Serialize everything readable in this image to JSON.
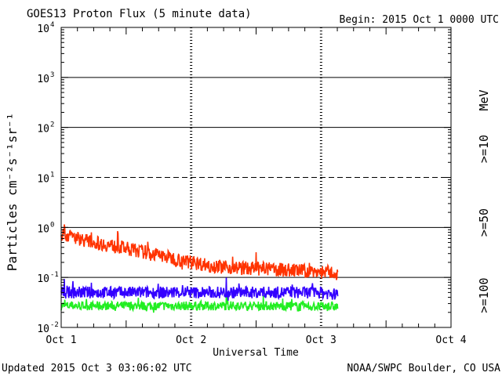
{
  "chart_data": {
    "type": "line",
    "title": "GOES13 Proton Flux (5 minute data)",
    "begin_label": "Begin: 2015 Oct 1 0000 UTC",
    "xlabel": "Universal Time",
    "ylabel": "Particles cm⁻²s⁻¹sr⁻¹",
    "x_unit": "days since 2015 Oct 1 0000 UTC",
    "xlim": [
      0,
      3
    ],
    "ylim": [
      0.01,
      10000
    ],
    "yscale": "log",
    "x_ticks": [
      {
        "value": 0,
        "label": "Oct 1"
      },
      {
        "value": 1,
        "label": "Oct 2"
      },
      {
        "value": 2,
        "label": "Oct 3"
      },
      {
        "value": 3,
        "label": "Oct 4"
      }
    ],
    "y_ticks": [
      {
        "value": 0.01,
        "base": "10",
        "exp": "-2"
      },
      {
        "value": 0.1,
        "base": "10",
        "exp": "-1"
      },
      {
        "value": 1,
        "base": "10",
        "exp": "0"
      },
      {
        "value": 10,
        "base": "10",
        "exp": "1"
      },
      {
        "value": 100,
        "base": "10",
        "exp": "2"
      },
      {
        "value": 1000,
        "base": "10",
        "exp": "3"
      },
      {
        "value": 10000,
        "base": "10",
        "exp": "4"
      }
    ],
    "reference_lines": [
      {
        "value": 0.1,
        "style": "solid"
      },
      {
        "value": 1,
        "style": "solid"
      },
      {
        "value": 10,
        "style": "dashed"
      },
      {
        "value": 100,
        "style": "solid"
      },
      {
        "value": 1000,
        "style": "solid"
      }
    ],
    "day_boundaries": [
      1,
      2
    ],
    "data_end": 2.13,
    "series": [
      {
        "name": ">=10 MeV",
        "label": ">=10",
        "unit_label": "MeV",
        "color": "#ff3300",
        "x": [
          0,
          0.25,
          0.5,
          0.75,
          1.0,
          1.25,
          1.5,
          1.75,
          2.0,
          2.13
        ],
        "values": [
          0.75,
          0.5,
          0.38,
          0.28,
          0.2,
          0.16,
          0.15,
          0.14,
          0.13,
          0.12
        ]
      },
      {
        "name": ">=50 MeV",
        "label": ">=50",
        "color": "#3300ff",
        "x": [
          0,
          0.5,
          1.0,
          1.5,
          2.0,
          2.13
        ],
        "values": [
          0.05,
          0.05,
          0.05,
          0.05,
          0.05,
          0.045
        ]
      },
      {
        "name": ">=100 MeV",
        "label": ">=100",
        "color": "#22ee22",
        "x": [
          0,
          0.5,
          1.0,
          1.5,
          2.0,
          2.13
        ],
        "values": [
          0.027,
          0.027,
          0.027,
          0.027,
          0.026,
          0.026
        ]
      }
    ]
  },
  "footer": {
    "updated": "Updated 2015 Oct  3 03:06:02 UTC",
    "source": "NOAA/SWPC Boulder, CO USA"
  }
}
